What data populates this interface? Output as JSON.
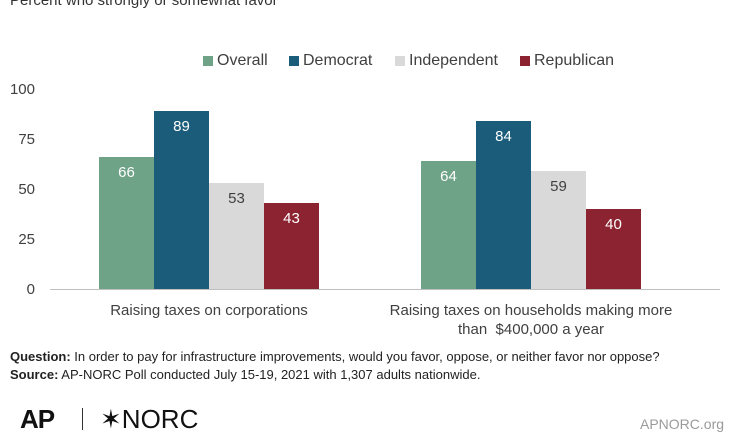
{
  "subtitle": "Percent who strongly or somewhat favor",
  "footer": {
    "question_label": "Question:",
    "question_text": " In order to pay for infrastructure improvements, would you favor, oppose, or neither favor nor oppose?",
    "source_label": "Source:",
    "source_text": " AP-NORC Poll conducted July 15-19, 2021 with 1,307 adults nationwide."
  },
  "logos": {
    "ap": "AP",
    "norc": "NORC",
    "url": "APNORC.org"
  },
  "chart_data": {
    "type": "bar",
    "categories": [
      "Raising taxes on corporations",
      "Raising taxes on households making more than $400,000 a year"
    ],
    "category_lines": [
      [
        "Raising taxes on corporations"
      ],
      [
        "Raising taxes on households making more",
        "than  $400,000 a year"
      ]
    ],
    "series": [
      {
        "name": "Overall",
        "values": [
          66,
          64
        ],
        "color": "#6fa387",
        "label_color": "#ffffff"
      },
      {
        "name": "Democrat",
        "values": [
          89,
          84
        ],
        "color": "#1a5c7a",
        "label_color": "#ffffff"
      },
      {
        "name": "Independent",
        "values": [
          53,
          59
        ],
        "color": "#d9d9d9",
        "label_color": "#404040"
      },
      {
        "name": "Republican",
        "values": [
          43,
          40
        ],
        "color": "#8c2331",
        "label_color": "#ffffff"
      }
    ],
    "ylim": [
      0,
      100
    ],
    "yticks": [
      0,
      25,
      50,
      75,
      100
    ],
    "grid": false,
    "legend_position": "top-center",
    "data_labels": true
  }
}
